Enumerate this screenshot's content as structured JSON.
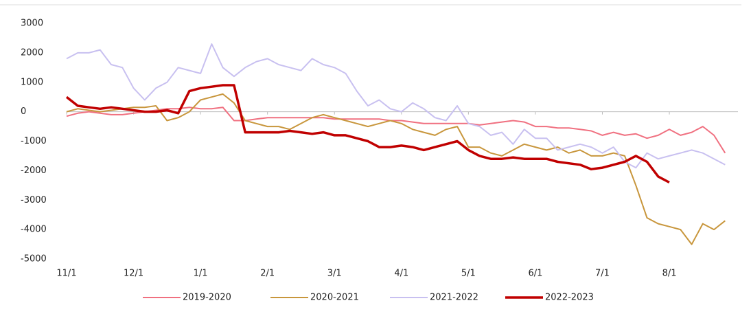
{
  "chart_data": {
    "type": "line",
    "categories": [
      "11/1",
      null,
      null,
      null,
      null,
      null,
      "12/1",
      null,
      null,
      null,
      null,
      null,
      "1/1",
      null,
      null,
      null,
      null,
      null,
      "2/1",
      null,
      null,
      null,
      null,
      null,
      "3/1",
      null,
      null,
      null,
      null,
      null,
      "4/1",
      null,
      null,
      null,
      null,
      null,
      "5/1",
      null,
      null,
      null,
      null,
      null,
      "6/1",
      null,
      null,
      null,
      null,
      null,
      "7/1",
      null,
      null,
      null,
      null,
      null,
      "8/1",
      null,
      null,
      null,
      null,
      null
    ],
    "ylim": [
      -5000,
      3000
    ],
    "yticks": [
      -5000,
      -4000,
      -3000,
      -2000,
      -1000,
      0,
      1000,
      2000,
      3000
    ],
    "legend": "bottom",
    "series": [
      {
        "name": "2019-2020",
        "color": "#f07080",
        "values": [
          -150,
          -50,
          0,
          -50,
          -100,
          -100,
          -50,
          0,
          50,
          100,
          100,
          150,
          100,
          100,
          150,
          -300,
          -300,
          -250,
          -200,
          -200,
          -200,
          -200,
          -200,
          -200,
          -250,
          -250,
          -250,
          -250,
          -250,
          -300,
          -300,
          -350,
          -400,
          -400,
          -400,
          -400,
          -400,
          -450,
          -400,
          -350,
          -300,
          -350,
          -500,
          -500,
          -550,
          -550,
          -600,
          -650,
          -800,
          -700,
          -800,
          -750,
          -900,
          -800,
          -600,
          -800,
          -700,
          -500,
          -800,
          -1400
        ]
      },
      {
        "name": "2020-2021",
        "color": "#c8963c",
        "values": [
          0,
          100,
          50,
          0,
          50,
          100,
          150,
          150,
          200,
          -300,
          -200,
          0,
          400,
          500,
          600,
          300,
          -300,
          -400,
          -500,
          -500,
          -600,
          -400,
          -200,
          -100,
          -200,
          -300,
          -400,
          -500,
          -400,
          -300,
          -400,
          -600,
          -700,
          -800,
          -600,
          -500,
          -1200,
          -1200,
          -1400,
          -1500,
          -1300,
          -1100,
          -1200,
          -1300,
          -1200,
          -1400,
          -1300,
          -1500,
          -1500,
          -1400,
          -1500,
          -2500,
          -3600,
          -3800,
          -3900,
          -4000,
          -4500,
          -3800,
          -4000,
          -3700
        ]
      },
      {
        "name": "2021-2022",
        "color": "#c8c0f0",
        "values": [
          1800,
          2000,
          2000,
          2100,
          1600,
          1500,
          800,
          400,
          800,
          1000,
          1500,
          1400,
          1300,
          2300,
          1500,
          1200,
          1500,
          1700,
          1800,
          1600,
          1500,
          1400,
          1800,
          1600,
          1500,
          1300,
          700,
          200,
          400,
          100,
          0,
          300,
          100,
          -200,
          -300,
          200,
          -400,
          -500,
          -800,
          -700,
          -1100,
          -600,
          -900,
          -900,
          -1300,
          -1200,
          -1100,
          -1200,
          -1400,
          -1200,
          -1700,
          -1900,
          -1400,
          -1600,
          -1500,
          -1400,
          -1300,
          -1400,
          -1600,
          -1800
        ]
      },
      {
        "name": "2022-2023",
        "color": "#c00000",
        "values": [
          500,
          200,
          150,
          100,
          150,
          100,
          50,
          0,
          0,
          50,
          -50,
          700,
          800,
          850,
          900,
          900,
          -700,
          -700,
          -700,
          -700,
          -650,
          -700,
          -750,
          -700,
          -800,
          -800,
          -900,
          -1000,
          -1200,
          -1200,
          -1150,
          -1200,
          -1300,
          -1200,
          -1100,
          -1000,
          -1300,
          -1500,
          -1600,
          -1600,
          -1550,
          -1600,
          -1600,
          -1600,
          -1700,
          -1750,
          -1800,
          -1950,
          -1900,
          -1800,
          -1700,
          -1500,
          -1700,
          -2200,
          -2400,
          null,
          null,
          null,
          null,
          null
        ]
      }
    ]
  }
}
